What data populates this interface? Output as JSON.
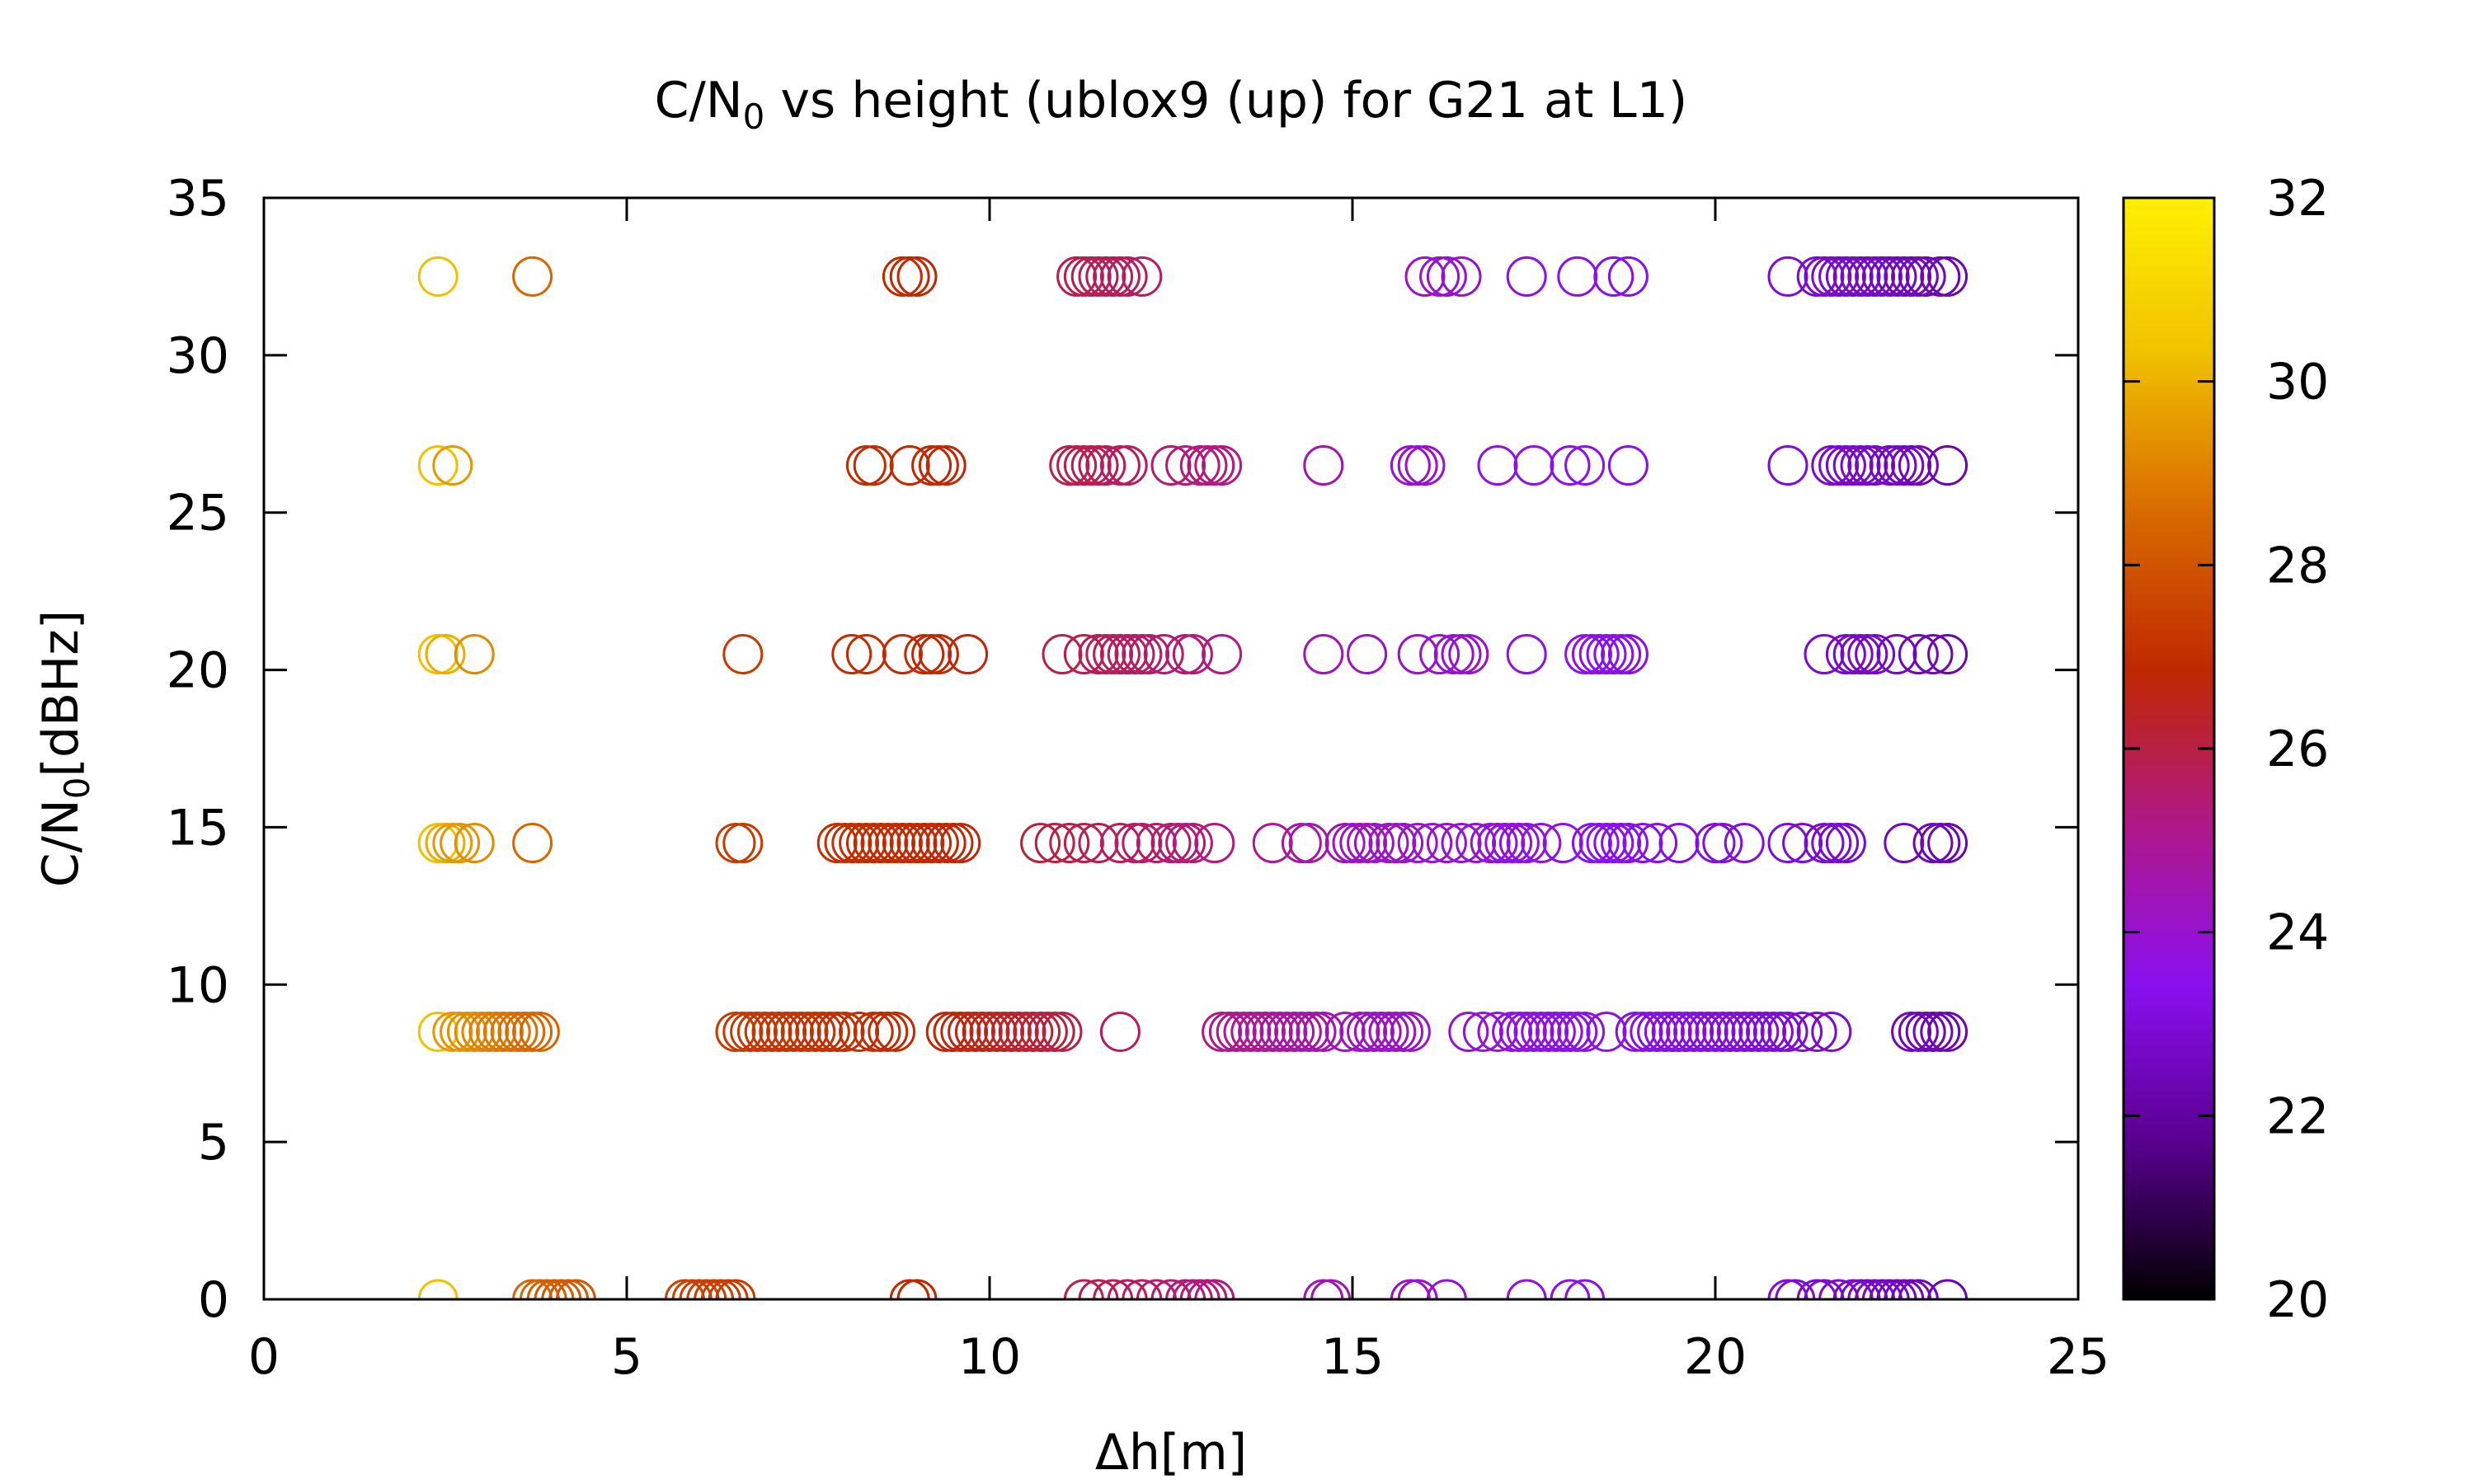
{
  "chart_data": {
    "type": "scatter",
    "title_main": "C/N",
    "title_sub": "0",
    "title_rest": " vs height (ublox9 (up) for G21 at L1)",
    "xlabel": "Δh[m]",
    "ylabel_main": "C/N",
    "ylabel_sub": "0",
    "ylabel_rest": "[dBHz]",
    "xlim": [
      0,
      25
    ],
    "ylim": [
      0,
      35
    ],
    "xticks": [
      "0",
      "5",
      "10",
      "15",
      "20",
      "25"
    ],
    "yticks": [
      "0",
      "5",
      "10",
      "15",
      "20",
      "25",
      "30",
      "35"
    ],
    "colorbar": {
      "range": [
        20,
        32
      ],
      "ticks": [
        "20",
        "22",
        "24",
        "26",
        "28",
        "30",
        "32"
      ],
      "colormap": [
        "#000000",
        "#5a0090",
        "#8a10f0",
        "#b0188a",
        "#c02800",
        "#d86a00",
        "#f0c000",
        "#fff000"
      ]
    },
    "grid": false,
    "legend": "none",
    "marker": "open-circle",
    "point_color_value": "colorbar value is derived from the Δh of each point",
    "rows": [
      {
        "y": 32.5,
        "x": [
          2.4,
          3.7,
          8.8,
          8.9,
          9.0,
          11.2,
          11.3,
          11.4,
          11.5,
          11.6,
          11.7,
          11.8,
          11.9,
          12.1,
          16.0,
          16.2,
          16.3,
          16.5,
          17.4,
          18.1,
          18.6,
          18.8,
          21.0,
          21.4,
          21.5,
          21.6,
          21.7,
          21.8,
          21.9,
          22.0,
          22.1,
          22.2,
          22.3,
          22.4,
          22.5,
          22.6,
          22.7,
          22.8,
          22.9,
          23.1,
          23.2
        ]
      },
      {
        "y": 26.5,
        "x": [
          2.4,
          2.6,
          8.3,
          8.4,
          8.9,
          9.2,
          9.3,
          9.4,
          11.1,
          11.2,
          11.3,
          11.4,
          11.5,
          11.6,
          11.8,
          11.9,
          12.5,
          12.7,
          12.9,
          13.0,
          13.1,
          13.2,
          14.6,
          15.8,
          15.9,
          16.0,
          17.0,
          17.5,
          18.0,
          18.2,
          18.8,
          21.0,
          21.6,
          21.7,
          21.8,
          21.9,
          22.0,
          22.1,
          22.2,
          22.4,
          22.5,
          22.6,
          22.7,
          22.8,
          23.2
        ]
      },
      {
        "y": 20.5,
        "x": [
          2.4,
          2.5,
          2.9,
          6.6,
          8.1,
          8.3,
          8.8,
          9.1,
          9.2,
          9.3,
          9.7,
          11.0,
          11.3,
          11.5,
          11.6,
          11.7,
          11.8,
          11.9,
          12.0,
          12.1,
          12.2,
          12.4,
          12.7,
          12.8,
          13.2,
          14.6,
          15.2,
          15.9,
          16.2,
          16.4,
          16.5,
          16.6,
          17.4,
          18.2,
          18.3,
          18.4,
          18.5,
          18.6,
          18.7,
          18.8,
          21.5,
          21.8,
          21.9,
          22.0,
          22.1,
          22.2,
          22.5,
          22.8,
          23.0,
          23.2
        ]
      },
      {
        "y": 14.5,
        "x": [
          2.4,
          2.5,
          2.6,
          2.7,
          2.9,
          3.7,
          6.5,
          6.6,
          7.9,
          8.0,
          8.1,
          8.2,
          8.3,
          8.4,
          8.5,
          8.6,
          8.7,
          8.8,
          8.9,
          9.0,
          9.1,
          9.2,
          9.3,
          9.4,
          9.5,
          9.6,
          10.7,
          10.9,
          11.1,
          11.3,
          11.5,
          11.8,
          12.0,
          12.1,
          12.3,
          12.5,
          12.6,
          12.7,
          12.8,
          13.1,
          13.9,
          14.3,
          14.4,
          14.9,
          15.0,
          15.1,
          15.2,
          15.3,
          15.5,
          15.6,
          15.7,
          15.9,
          16.1,
          16.3,
          16.5,
          16.7,
          16.9,
          17.0,
          17.1,
          17.2,
          17.3,
          17.4,
          17.6,
          17.9,
          18.3,
          18.4,
          18.5,
          18.6,
          18.7,
          18.8,
          19.0,
          19.2,
          19.5,
          20.0,
          20.1,
          20.4,
          21.0,
          21.2,
          21.5,
          21.6,
          21.7,
          21.8,
          22.6,
          23.0,
          23.1,
          23.2
        ]
      },
      {
        "y": 8.5,
        "x": [
          2.4,
          2.6,
          2.7,
          2.8,
          2.9,
          3.0,
          3.1,
          3.2,
          3.3,
          3.4,
          3.5,
          3.6,
          3.7,
          3.8,
          6.5,
          6.6,
          6.7,
          6.8,
          6.9,
          7.0,
          7.1,
          7.2,
          7.3,
          7.4,
          7.5,
          7.6,
          7.7,
          7.8,
          7.9,
          8.0,
          8.2,
          8.4,
          8.5,
          8.6,
          8.7,
          9.4,
          9.5,
          9.6,
          9.7,
          9.8,
          9.9,
          10.0,
          10.1,
          10.2,
          10.3,
          10.4,
          10.5,
          10.6,
          10.7,
          10.8,
          10.9,
          11.0,
          11.8,
          13.2,
          13.3,
          13.4,
          13.5,
          13.6,
          13.7,
          13.8,
          13.9,
          14.0,
          14.1,
          14.2,
          14.3,
          14.4,
          14.5,
          14.6,
          14.9,
          15.1,
          15.2,
          15.3,
          15.4,
          15.5,
          15.6,
          15.7,
          15.8,
          16.6,
          16.8,
          17.0,
          17.2,
          17.3,
          17.4,
          17.5,
          17.6,
          17.7,
          17.8,
          17.9,
          18.0,
          18.1,
          18.2,
          18.5,
          18.9,
          19.0,
          19.1,
          19.2,
          19.3,
          19.4,
          19.5,
          19.6,
          19.7,
          19.8,
          19.9,
          20.0,
          20.1,
          20.2,
          20.3,
          20.4,
          20.5,
          20.6,
          20.7,
          20.8,
          20.9,
          21.0,
          21.2,
          21.4,
          21.6,
          22.7,
          22.8,
          22.9,
          23.0,
          23.1,
          23.2
        ]
      },
      {
        "y": 0.0,
        "x": [
          2.4,
          3.7,
          3.8,
          3.9,
          4.0,
          4.1,
          4.2,
          4.3,
          5.8,
          5.9,
          6.0,
          6.1,
          6.2,
          6.3,
          6.4,
          6.5,
          8.9,
          9.0,
          11.3,
          11.5,
          11.7,
          11.9,
          12.1,
          12.3,
          12.5,
          12.7,
          12.8,
          12.9,
          13.0,
          13.1,
          14.6,
          14.7,
          15.8,
          15.9,
          16.3,
          17.4,
          18.0,
          18.2,
          21.0,
          21.1,
          21.4,
          21.5,
          21.7,
          21.9,
          22.0,
          22.1,
          22.2,
          22.3,
          22.4,
          22.5,
          22.6,
          22.7,
          22.8,
          23.2
        ]
      }
    ]
  }
}
